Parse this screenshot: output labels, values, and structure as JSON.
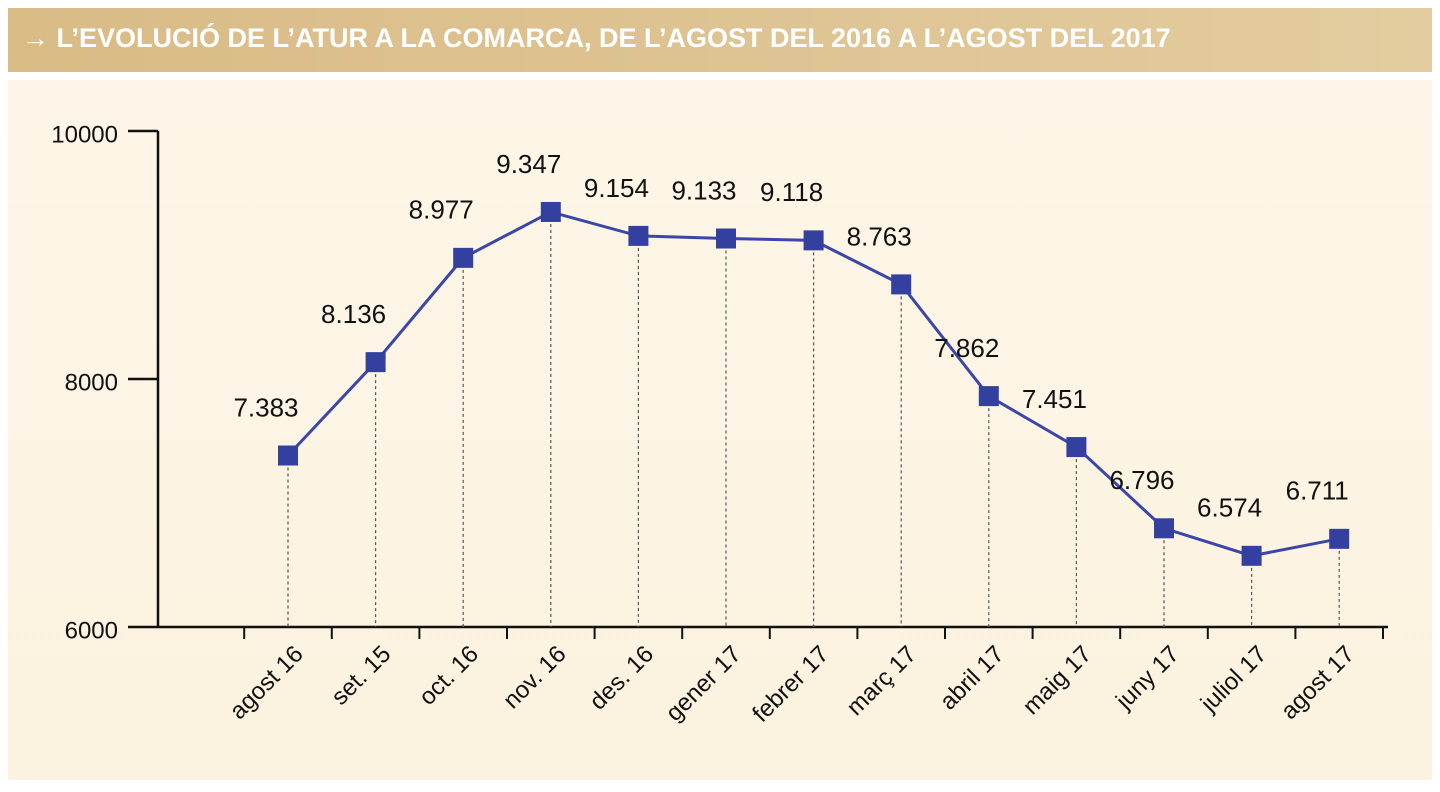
{
  "chart_data": {
    "type": "line",
    "title": "→ L’EVOLUCIÓ DE L’ATUR A LA COMARCA, DE L’AGOST DEL 2016 A L’AGOST DEL 2017",
    "categories": [
      "agost 16",
      "set. 15",
      "oct. 16",
      "nov. 16",
      "des. 16",
      "gener 17",
      "febrer 17",
      "març 17",
      "abril 17",
      "maig 17",
      "juny 17",
      "juliol 17",
      "agost 17"
    ],
    "series": [
      {
        "color": "#3a46a8",
        "values": [
          7383,
          8136,
          8977,
          9347,
          9154,
          9133,
          9118,
          8763,
          7862,
          7451,
          6796,
          6574,
          6711
        ],
        "value_labels": [
          "7.383",
          "8.136",
          "8.977",
          "9.347",
          "9.154",
          "9.133",
          "9.118",
          "8.763",
          "7.862",
          "7.451",
          "6.796",
          "6.574",
          "6.711"
        ]
      }
    ],
    "ylim": [
      6000,
      10000
    ],
    "yticks": [
      6000,
      8000,
      10000
    ],
    "grid": false
  }
}
